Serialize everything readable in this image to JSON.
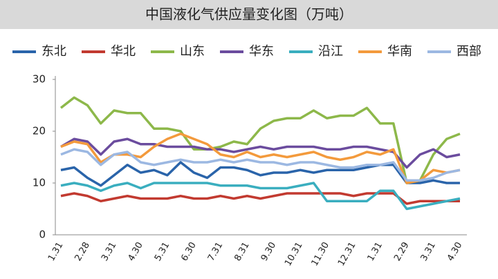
{
  "chart_data": {
    "type": "line",
    "title": "中国液化气供应量变化图（万吨）",
    "categories": [
      "1.31",
      null,
      "2.28",
      null,
      "3.31",
      null,
      "4.30",
      null,
      "5.31",
      null,
      "6.30",
      null,
      "7.31",
      null,
      "8.31",
      null,
      "9.30",
      null,
      "10.31",
      null,
      "11.30",
      null,
      "12.31",
      null,
      "1.31",
      null,
      "2.29",
      null,
      "3.31",
      null,
      "4.30"
    ],
    "ylim": [
      0,
      30
    ],
    "yticks": [
      0,
      10,
      20,
      30
    ],
    "legend": "top",
    "series": [
      {
        "name": "东北",
        "color": "#2a64aa",
        "values": [
          12.5,
          13,
          11,
          9.5,
          11.5,
          13.5,
          12,
          12.5,
          11.5,
          14,
          12,
          11,
          13,
          13,
          12.5,
          11.5,
          12,
          12,
          12.5,
          12,
          12.5,
          12.5,
          12.5,
          13,
          13.5,
          13.5,
          10,
          10,
          10.5,
          10,
          10
        ]
      },
      {
        "name": "华北",
        "color": "#c23a30",
        "values": [
          7.5,
          8,
          7.5,
          6.5,
          7,
          7.5,
          7,
          7,
          7,
          7.5,
          7,
          7,
          7.5,
          7,
          7.5,
          7,
          7.5,
          8,
          8,
          8,
          8,
          8,
          7.5,
          8,
          8,
          8,
          6,
          6.5,
          6.5,
          6.5,
          6.5
        ]
      },
      {
        "name": "山东",
        "color": "#8db84a",
        "values": [
          24.5,
          26.5,
          25,
          21.5,
          24,
          23.5,
          23.5,
          20.5,
          20.5,
          20,
          16.5,
          16.5,
          17,
          18,
          17.5,
          20.5,
          22,
          22.5,
          22.5,
          24,
          22.5,
          23,
          23,
          24.5,
          21.5,
          21.5,
          10,
          10.5,
          15.5,
          18.5,
          19.5
        ]
      },
      {
        "name": "华东",
        "color": "#6b4c9e",
        "values": [
          17,
          18.5,
          18,
          15.5,
          18,
          18.5,
          17.5,
          17.5,
          17,
          17,
          17,
          16.5,
          16.5,
          16,
          16.5,
          17,
          16.5,
          17,
          17,
          17,
          16.5,
          16.5,
          17,
          17,
          16.5,
          16,
          13,
          15.5,
          16.5,
          15,
          15.5
        ]
      },
      {
        "name": "沿江",
        "color": "#3aaebf",
        "values": [
          9.5,
          10,
          9.5,
          8.5,
          9.5,
          10,
          9,
          10,
          10,
          10,
          10,
          10,
          9.5,
          9.5,
          9.5,
          9,
          9,
          9,
          9.5,
          10,
          6.5,
          6.5,
          6.5,
          6.5,
          8.5,
          8.5,
          5,
          5.5,
          6,
          6.5,
          7
        ]
      },
      {
        "name": "华南",
        "color": "#f39a3c",
        "values": [
          17,
          18,
          17.5,
          14,
          15.5,
          15.5,
          15,
          17,
          18.5,
          19.5,
          18.5,
          17.5,
          15.5,
          15,
          16,
          15,
          15.5,
          15,
          15.5,
          16,
          15,
          14.5,
          15,
          16,
          15.5,
          16.5,
          10,
          10.5,
          12.5,
          12,
          12.5
        ]
      },
      {
        "name": "西部",
        "color": "#9cb8e2",
        "values": [
          15.5,
          16.5,
          16,
          13.5,
          15.5,
          16,
          14,
          13.5,
          14,
          14.5,
          14,
          14,
          14.5,
          14,
          14.5,
          14,
          14,
          13.5,
          14,
          14,
          13.5,
          13,
          13,
          13.5,
          13.5,
          14,
          10.5,
          10.5,
          11,
          12,
          12.5
        ]
      }
    ]
  }
}
